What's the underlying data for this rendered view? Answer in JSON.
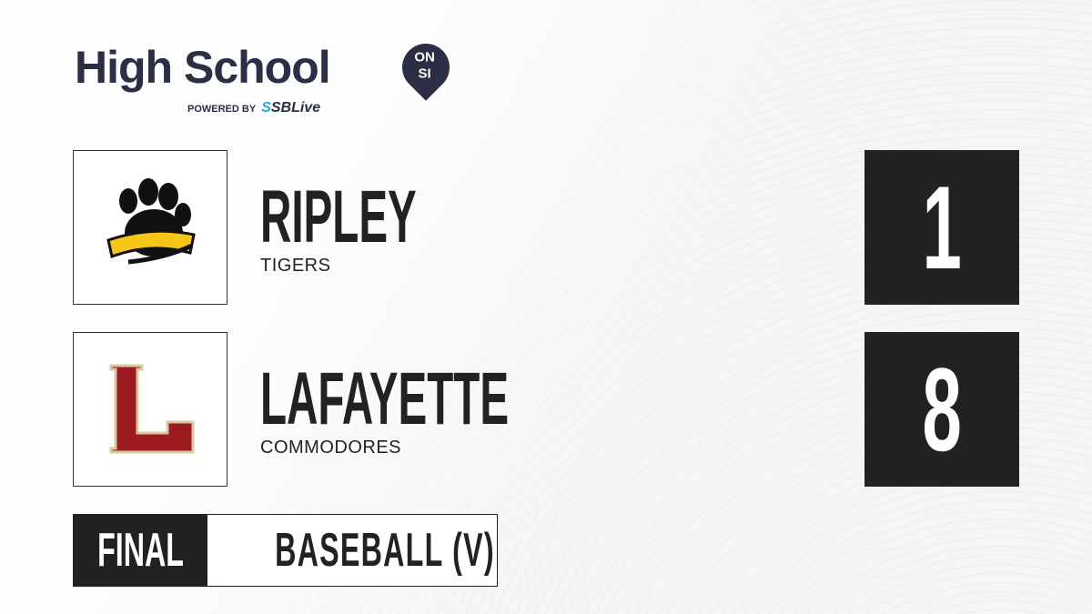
{
  "brand": {
    "title": "High School",
    "badge_top": "ON",
    "badge_bottom": "SI",
    "powered_by": "POWERED BY",
    "partner_s": "S",
    "partner": "SBLive"
  },
  "teams": [
    {
      "name": "RIPLEY",
      "mascot": "TIGERS",
      "score": "1",
      "logo": "tigers-paw-logo",
      "logo_text": "Tigers"
    },
    {
      "name": "LAFAYETTE",
      "mascot": "COMMODORES",
      "score": "8",
      "logo": "letter-l-logo",
      "logo_text": "L"
    }
  ],
  "status": "FINAL",
  "sport": "BASEBALL (V)",
  "colors": {
    "dark": "#222222",
    "brand": "#2a2f45",
    "accent": "#22a7e0",
    "lafayette": "#9b1b20",
    "tigers": "#f5c518"
  }
}
